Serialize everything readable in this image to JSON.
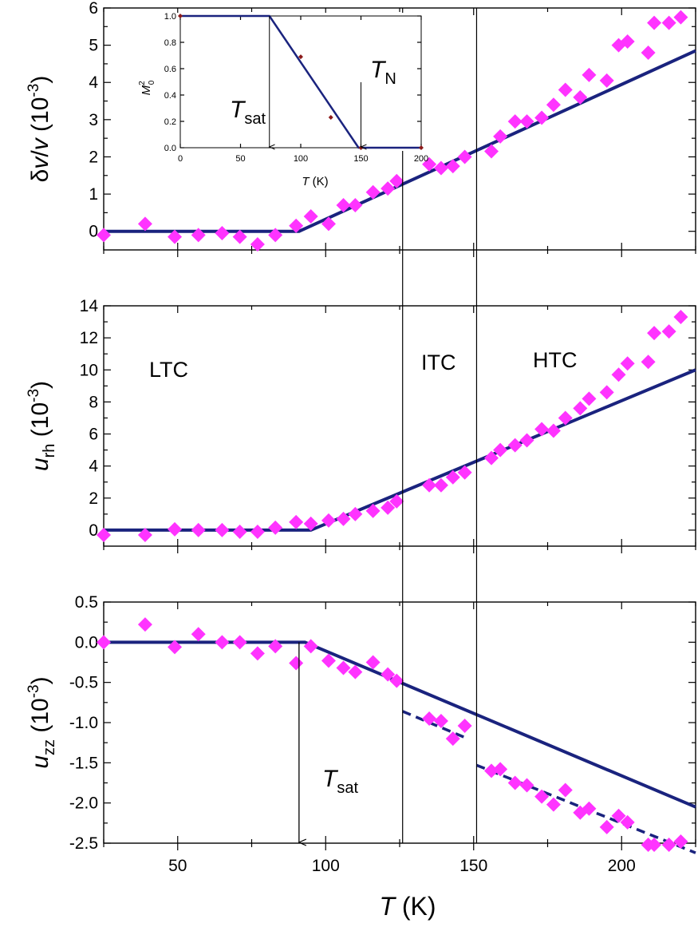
{
  "chart_data": [
    {
      "type": "scatter",
      "panel": "top",
      "xlim": [
        25,
        225
      ],
      "ylim": [
        -0.5,
        6
      ],
      "xticks": [
        50,
        100,
        150,
        200
      ],
      "yticks": [
        0,
        1,
        2,
        3,
        4,
        5,
        6
      ],
      "ylabel": {
        "prefix": "δ",
        "italic_a": "v",
        "mid": "/",
        "italic_b": "v",
        "unit": " (10",
        "exp": "-3",
        "close": ")"
      },
      "grid": false,
      "colors": {
        "points": "#ff33ff",
        "fit": "#1a237e"
      },
      "series": [
        {
          "kind": "points",
          "x": [
            25,
            39,
            49,
            57,
            65,
            71,
            77,
            83,
            90,
            95,
            101,
            106,
            110,
            116,
            121,
            124,
            135,
            139,
            143,
            147,
            156,
            159,
            164,
            168,
            173,
            177,
            181,
            186,
            189,
            195,
            199,
            202,
            209,
            211,
            216,
            220
          ],
          "y": [
            -0.1,
            0.2,
            -0.15,
            -0.1,
            -0.05,
            -0.15,
            -0.35,
            -0.1,
            0.15,
            0.4,
            0.2,
            0.7,
            0.7,
            1.05,
            1.15,
            1.35,
            1.8,
            1.7,
            1.75,
            2.0,
            2.15,
            2.55,
            2.95,
            2.95,
            3.05,
            3.4,
            3.8,
            3.6,
            4.2,
            4.05,
            5.0,
            5.1,
            4.8,
            5.6,
            5.6,
            5.75
          ]
        },
        {
          "kind": "line",
          "x": [
            25,
            91,
            225
          ],
          "y": [
            0,
            0,
            4.85
          ]
        }
      ],
      "vlines": [
        126,
        151
      ],
      "inset": {
        "xlim": [
          0,
          200
        ],
        "ylim": [
          0,
          1
        ],
        "xticks": [
          0,
          50,
          100,
          150,
          200
        ],
        "yticks": [
          0.0,
          0.2,
          0.4,
          0.6,
          0.8,
          1.0
        ],
        "xtick_labels": [
          "0",
          "50",
          "100",
          "150",
          "200"
        ],
        "ytick_labels": [
          "0.0",
          "0.2",
          "0.4",
          "0.6",
          "0.8",
          "1.0"
        ],
        "xlabel": {
          "italic": "T",
          "rest": " (K)"
        },
        "ylabel": {
          "italic": "M",
          "sup": "2",
          "sub": "0"
        },
        "points": {
          "x": [
            0,
            100,
            125,
            150,
            200
          ],
          "y": [
            1.0,
            0.69,
            0.23,
            0.0,
            0.0
          ]
        },
        "line": {
          "x": [
            0,
            74,
            148,
            200
          ],
          "y": [
            1.0,
            1.0,
            0.0,
            0.0
          ]
        },
        "colors": {
          "points": "#8b1a1a",
          "line": "#1a237e"
        },
        "arrows": [
          {
            "x": 74,
            "label": {
              "italic": "T",
              "sub": "sat"
            }
          },
          {
            "x": 150,
            "label": {
              "italic": "T",
              "sub": "N"
            }
          }
        ]
      }
    },
    {
      "type": "scatter",
      "panel": "middle",
      "xlim": [
        25,
        225
      ],
      "ylim": [
        -1,
        14
      ],
      "xticks": [
        50,
        100,
        150,
        200
      ],
      "yticks": [
        0,
        2,
        4,
        6,
        8,
        10,
        12,
        14
      ],
      "ylabel": {
        "italic": "u",
        "sub": "rh",
        "unit": " (10",
        "exp": "-3",
        "close": ")"
      },
      "grid": false,
      "region_labels": [
        "LTC",
        "ITC",
        "HTC"
      ],
      "colors": {
        "points": "#ff33ff",
        "fit": "#1a237e"
      },
      "series": [
        {
          "kind": "points",
          "x": [
            25,
            39,
            49,
            57,
            65,
            71,
            77,
            83,
            90,
            95,
            101,
            106,
            110,
            116,
            121,
            124,
            135,
            139,
            143,
            147,
            156,
            159,
            164,
            168,
            173,
            177,
            181,
            186,
            189,
            195,
            199,
            202,
            209,
            211,
            216,
            220
          ],
          "y": [
            -0.3,
            -0.3,
            0.05,
            0.0,
            0.0,
            -0.1,
            -0.1,
            0.15,
            0.5,
            0.4,
            0.6,
            0.7,
            1.0,
            1.2,
            1.4,
            1.8,
            2.8,
            2.8,
            3.3,
            3.6,
            4.5,
            5.0,
            5.3,
            5.6,
            6.3,
            6.2,
            7.0,
            7.6,
            8.2,
            8.6,
            9.7,
            10.4,
            10.5,
            12.3,
            12.4,
            13.3
          ]
        },
        {
          "kind": "line",
          "x": [
            25,
            95,
            225
          ],
          "y": [
            0,
            0,
            10.0
          ]
        }
      ],
      "vlines": [
        126,
        151
      ]
    },
    {
      "type": "scatter",
      "panel": "bottom",
      "xlim": [
        25,
        225
      ],
      "ylim": [
        -2.5,
        0.5
      ],
      "xticks": [
        50,
        100,
        150,
        200
      ],
      "yticks": [
        -2.5,
        -2.0,
        -1.5,
        -1.0,
        -0.5,
        0.0,
        0.5
      ],
      "ytick_labels": [
        "-2.5",
        "-2.0",
        "-1.5",
        "-1.0",
        "-0.5",
        "0.0",
        "0.5"
      ],
      "xtick_labels": [
        "50",
        "100",
        "150",
        "200"
      ],
      "xlabel": {
        "italic": "T",
        "rest": " (K)"
      },
      "ylabel": {
        "italic": "u",
        "sub": "zz",
        "unit": " (10",
        "exp": "-3",
        "close": ")"
      },
      "grid": false,
      "colors": {
        "points": "#ff33ff",
        "fit": "#1a237e"
      },
      "series": [
        {
          "kind": "points",
          "x": [
            25,
            39,
            49,
            57,
            65,
            71,
            77,
            83,
            90,
            95,
            101,
            106,
            110,
            116,
            121,
            124,
            135,
            139,
            143,
            147,
            156,
            159,
            164,
            168,
            173,
            177,
            181,
            186,
            189,
            195,
            199,
            202,
            209,
            211,
            216,
            220
          ],
          "y": [
            0.0,
            0.22,
            -0.06,
            0.1,
            0.0,
            0.0,
            -0.14,
            -0.05,
            -0.26,
            -0.05,
            -0.23,
            -0.32,
            -0.37,
            -0.25,
            -0.4,
            -0.48,
            -0.95,
            -0.98,
            -1.2,
            -1.04,
            -1.6,
            -1.58,
            -1.75,
            -1.78,
            -1.92,
            -2.02,
            -1.84,
            -2.12,
            -2.07,
            -2.3,
            -2.16,
            -2.24,
            -2.52,
            -2.52,
            -2.52,
            -2.48
          ]
        },
        {
          "kind": "line",
          "x": [
            25,
            93,
            225
          ],
          "y": [
            0,
            0,
            -2.05
          ]
        },
        {
          "kind": "dashed",
          "x": [
            126,
            148
          ],
          "y": [
            -0.86,
            -1.2
          ]
        },
        {
          "kind": "dashed",
          "x": [
            151,
            225
          ],
          "y": [
            -1.53,
            -2.62
          ]
        }
      ],
      "vlines": [
        126,
        151
      ],
      "arrow": {
        "x": 91,
        "label": {
          "italic": "T",
          "sub": "sat"
        }
      }
    }
  ]
}
